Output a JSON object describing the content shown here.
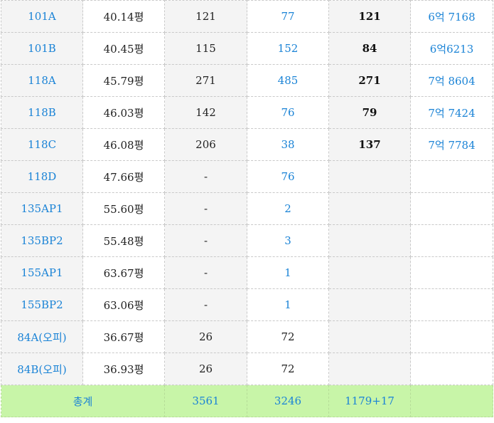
{
  "rows": [
    {
      "type": "101A",
      "area": "40.14평",
      "c3": "121",
      "c4": "77",
      "c5": "121",
      "price": "6억 7168"
    },
    {
      "type": "101B",
      "area": "40.45평",
      "c3": "115",
      "c4": "152",
      "c5": "84",
      "price": "6억6213"
    },
    {
      "type": "118A",
      "area": "45.79평",
      "c3": "271",
      "c4": "485",
      "c5": "271",
      "price": "7억 8604"
    },
    {
      "type": "118B",
      "area": "46.03평",
      "c3": "142",
      "c4": "76",
      "c5": "79",
      "price": "7억 7424"
    },
    {
      "type": "118C",
      "area": "46.08평",
      "c3": "206",
      "c4": "38",
      "c5": "137",
      "price": "7억 7784"
    },
    {
      "type": "118D",
      "area": "47.66평",
      "c3": "-",
      "c4": "76",
      "c5": "",
      "price": ""
    },
    {
      "type": "135AP1",
      "area": "55.60평",
      "c3": "-",
      "c4": "2",
      "c5": "",
      "price": ""
    },
    {
      "type": "135BP2",
      "area": "55.48평",
      "c3": "-",
      "c4": "3",
      "c5": "",
      "price": ""
    },
    {
      "type": "155AP1",
      "area": "63.67평",
      "c3": "-",
      "c4": "1",
      "c5": "",
      "price": ""
    },
    {
      "type": "155BP2",
      "area": "63.06평",
      "c3": "-",
      "c4": "1",
      "c5": "",
      "price": ""
    },
    {
      "type": "84A(오피)",
      "area": "36.67평",
      "c3": "26",
      "c4": "72",
      "c5": "",
      "price": ""
    },
    {
      "type": "84B(오피)",
      "area": "36.93평",
      "c3": "26",
      "c4": "72",
      "c5": "",
      "price": ""
    }
  ],
  "total": {
    "label": "총계",
    "c3": "3561",
    "c4": "3246",
    "c5": "1179+17",
    "price": ""
  },
  "colors": {
    "link_blue": "#1a83d6",
    "total_bg": "#c8f5a8",
    "alt_bg": "#f4f4f4"
  }
}
